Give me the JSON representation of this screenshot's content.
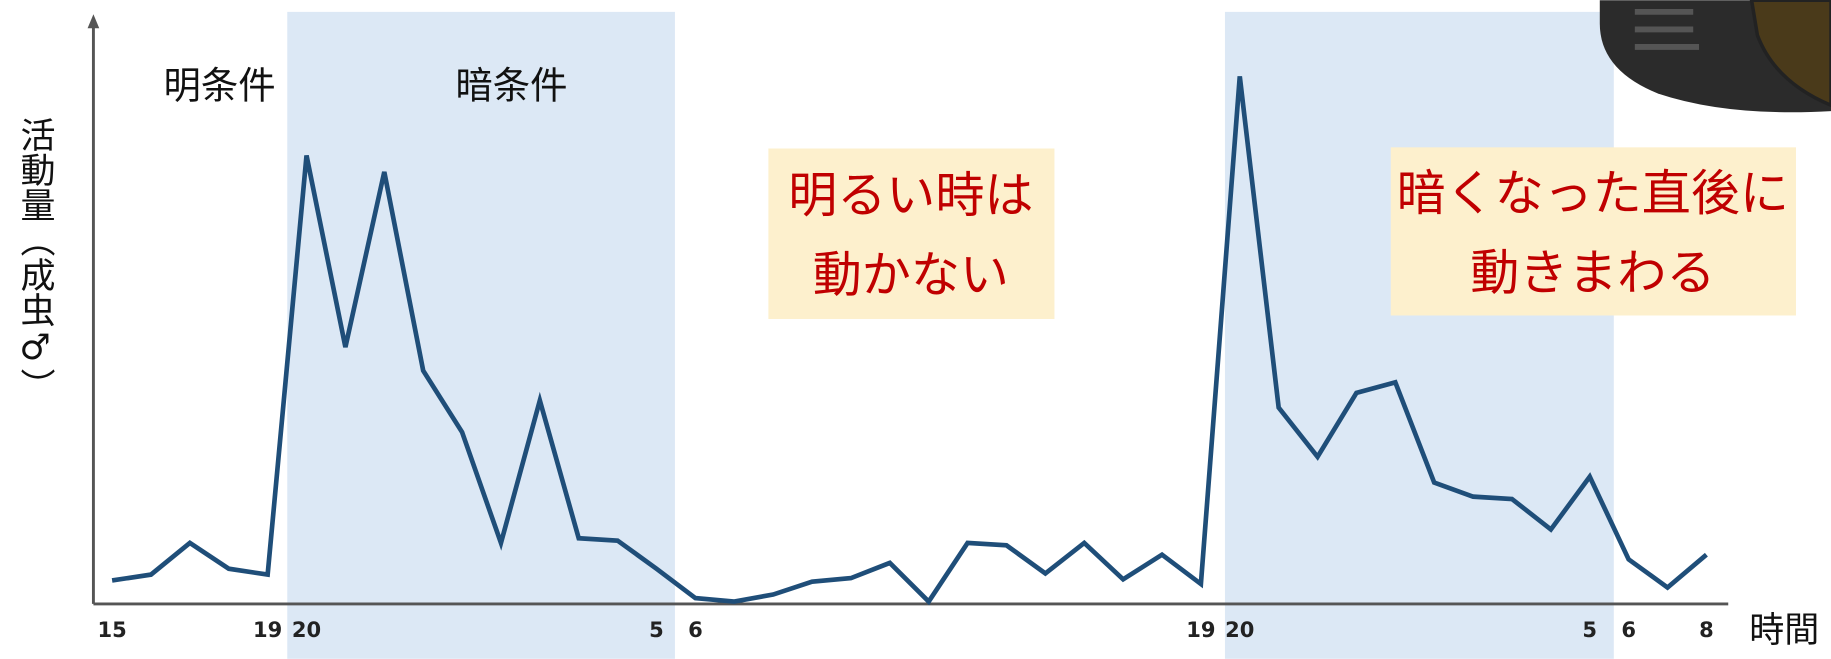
{
  "chart_data": {
    "type": "line",
    "y_label": "活動量（成虫♂）",
    "x_label": "時間",
    "region_labels": [
      "明条件",
      "暗条件"
    ],
    "annotations": [
      [
        "明るい時は",
        "動かない"
      ],
      [
        "暗くなった直後に",
        "動きまわる"
      ]
    ],
    "categories": [
      "15",
      null,
      null,
      null,
      "19",
      "20",
      null,
      null,
      null,
      null,
      null,
      null,
      null,
      null,
      "5",
      "6",
      null,
      null,
      null,
      null,
      null,
      null,
      null,
      null,
      null,
      null,
      null,
      null,
      "19",
      "20",
      null,
      null,
      null,
      null,
      null,
      null,
      null,
      null,
      "5",
      "6",
      null,
      "8"
    ],
    "series": [
      {
        "color": "#1f4e79",
        "values": [
          4,
          5,
          10.4,
          6,
          5,
          76.5,
          43.8,
          73.7,
          39.8,
          29.3,
          10.4,
          34.7,
          11.2,
          10.8,
          6,
          1,
          0.4,
          1.6,
          3.8,
          4.4,
          7,
          0.4,
          10.4,
          10,
          5.2,
          10.4,
          4.2,
          8.4,
          3.4,
          90,
          33.5,
          25.1,
          36,
          37.8,
          20.7,
          18.3,
          17.9,
          12.7,
          21.7,
          7.6,
          2.8,
          8.4
        ]
      }
    ],
    "ylim": [
      0,
      100
    ]
  }
}
